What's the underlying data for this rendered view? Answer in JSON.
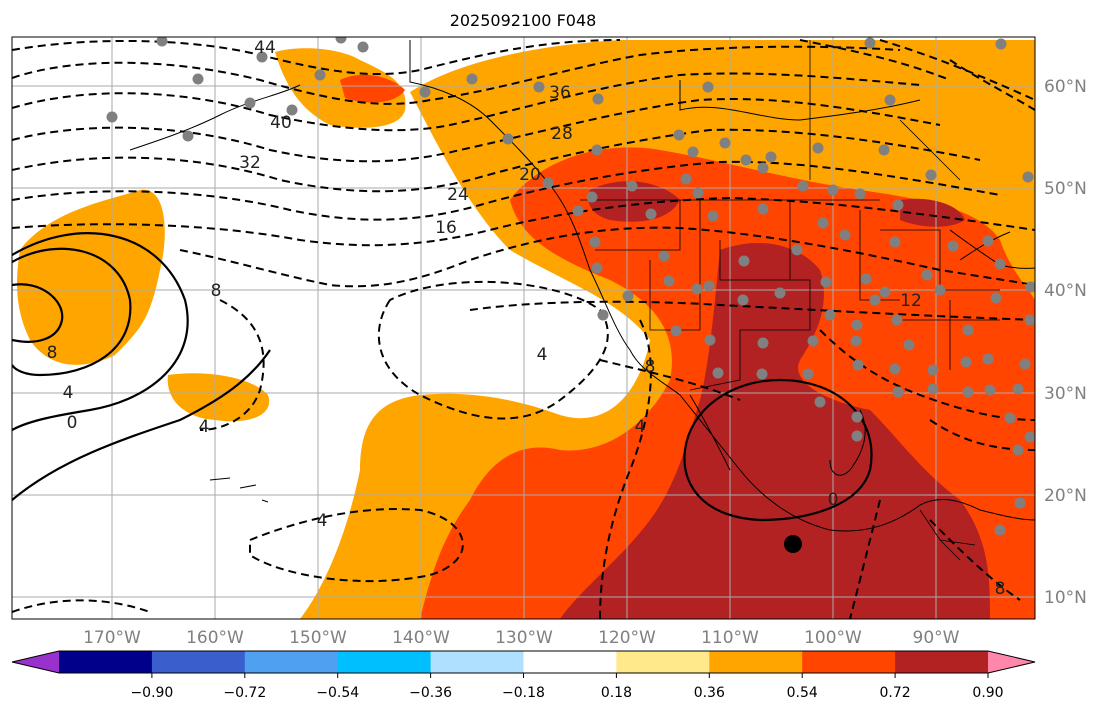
{
  "title": "2025092100 F048",
  "lon_labels": [
    "170°W",
    "160°W",
    "150°W",
    "140°W",
    "130°W",
    "120°W",
    "110°W",
    "100°W",
    "90°W"
  ],
  "lat_labels": [
    "60°N",
    "50°N",
    "40°N",
    "30°N",
    "20°N",
    "10°N"
  ],
  "colorbar": {
    "colors": [
      "#9932cc",
      "#00008b",
      "#3a5fcd",
      "#4fa0f0",
      "#00bfff",
      "#b0e0ff",
      "#ffffff",
      "#ffe98a",
      "#ffa500",
      "#ff4500",
      "#b22222",
      "#ff88aa"
    ],
    "ticks": [
      "−0.90",
      "−0.72",
      "−0.54",
      "−0.36",
      "−0.18",
      "0.18",
      "0.36",
      "0.54",
      "0.72",
      "0.90"
    ]
  },
  "fill_colors": {
    "c036": "#ffa500",
    "c054": "#ff4500",
    "c072": "#b22222"
  },
  "contour_labels": [
    "44",
    "40",
    "36",
    "32",
    "28",
    "24",
    "20",
    "16",
    "12",
    "8",
    "8",
    "4",
    "4",
    "4",
    "0",
    "0",
    "8",
    "4",
    "4",
    "8"
  ],
  "marker": "black-dot"
}
